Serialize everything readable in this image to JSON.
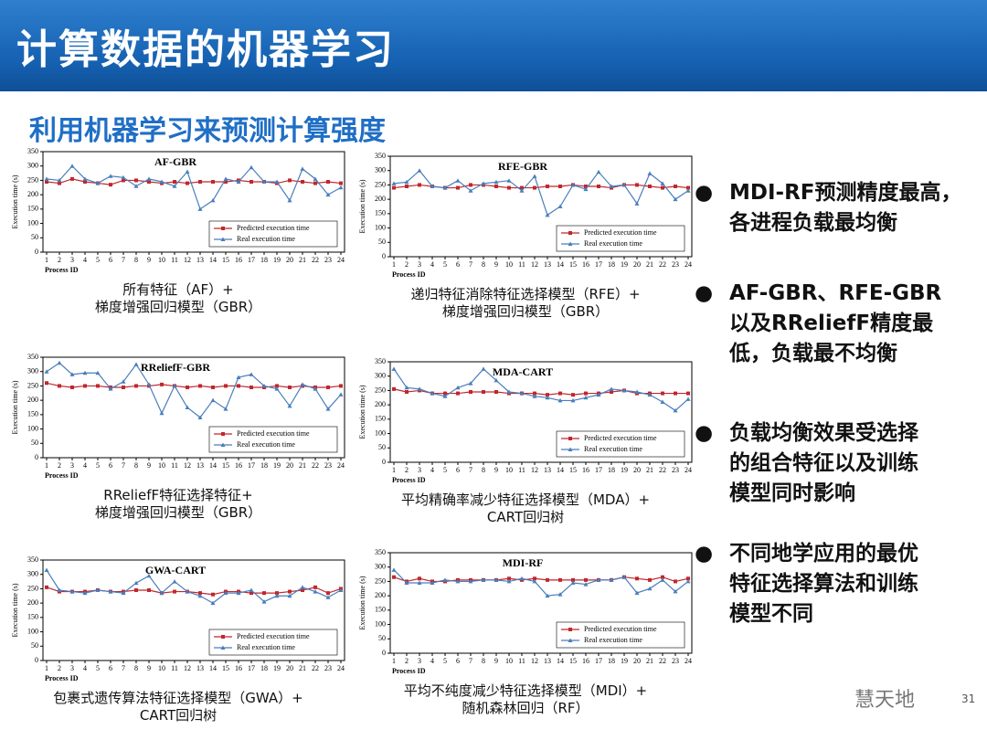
{
  "header": {
    "title": "计算数据的机器学习",
    "subtitle": "利用机器学习来预测计算强度"
  },
  "bullets": [
    [
      "MDI-RF预测精度最高，",
      "各进程负载最均衡"
    ],
    [
      "AF-GBR、RFE-GBR",
      "以及RReliefF精度最",
      "低，负载最不均衡"
    ],
    [
      "负载均衡效果受选择",
      "的组合特征以及训练",
      "模型同时影响"
    ],
    [
      "不同地学应用的最优",
      "特征选择算法和训练",
      "模型不同"
    ]
  ],
  "footer": {
    "watermark": "慧天地",
    "page": "31"
  },
  "chart_data": [
    {
      "type": "line",
      "title": "AF-GBR",
      "caption": [
        "所有特征（AF）+",
        "梯度增强回归模型（GBR）"
      ],
      "xlabel": "Process ID",
      "ylabel": "Execution time (s)",
      "x": [
        1,
        2,
        3,
        4,
        5,
        6,
        7,
        8,
        9,
        10,
        11,
        12,
        13,
        14,
        15,
        16,
        17,
        18,
        19,
        20,
        21,
        22,
        23,
        24
      ],
      "xlim": [
        1,
        24
      ],
      "xticks": [
        1,
        2,
        3,
        4,
        5,
        6,
        7,
        8,
        9,
        10,
        11,
        12,
        13,
        14,
        15,
        16,
        17,
        18,
        19,
        20,
        21,
        22,
        23,
        24
      ],
      "ylim": [
        0,
        350
      ],
      "yticks": [
        0,
        50,
        100,
        150,
        200,
        250,
        300,
        350
      ],
      "legend": "lower right",
      "series": [
        {
          "name": "Predicted execution time",
          "color": "#c0272d",
          "marker": "square",
          "values": [
            245,
            240,
            255,
            245,
            240,
            235,
            250,
            250,
            245,
            240,
            245,
            240,
            245,
            245,
            245,
            250,
            245,
            245,
            240,
            250,
            245,
            240,
            245,
            240
          ]
        },
        {
          "name": "Real execution time",
          "color": "#4a7ebb",
          "marker": "triangle",
          "values": [
            255,
            250,
            300,
            255,
            240,
            265,
            260,
            230,
            255,
            245,
            230,
            280,
            150,
            180,
            255,
            245,
            295,
            245,
            245,
            180,
            290,
            255,
            200,
            225
          ]
        }
      ]
    },
    {
      "type": "line",
      "title": "RFE-GBR",
      "caption": [
        "递归特征消除特征选择模型（RFE）+",
        "梯度增强回归模型（GBR）"
      ],
      "xlabel": "Process ID",
      "ylabel": "Execution time (s)",
      "x": [
        1,
        2,
        3,
        4,
        5,
        6,
        7,
        8,
        9,
        10,
        11,
        12,
        13,
        14,
        15,
        16,
        17,
        18,
        19,
        20,
        21,
        22,
        23,
        24
      ],
      "xlim": [
        1,
        24
      ],
      "xticks": [
        1,
        2,
        3,
        4,
        5,
        6,
        7,
        8,
        9,
        10,
        11,
        12,
        13,
        14,
        15,
        16,
        17,
        18,
        19,
        20,
        21,
        22,
        23,
        24
      ],
      "ylim": [
        0,
        350
      ],
      "yticks": [
        0,
        50,
        100,
        150,
        200,
        250,
        300,
        350
      ],
      "legend": "lower right",
      "series": [
        {
          "name": "Predicted execution time",
          "color": "#c0272d",
          "marker": "square",
          "values": [
            240,
            245,
            250,
            245,
            240,
            240,
            250,
            250,
            245,
            240,
            240,
            240,
            245,
            245,
            250,
            245,
            245,
            240,
            250,
            250,
            245,
            240,
            245,
            240
          ]
        },
        {
          "name": "Real execution time",
          "color": "#4a7ebb",
          "marker": "triangle",
          "values": [
            255,
            260,
            300,
            245,
            240,
            265,
            230,
            255,
            260,
            265,
            230,
            280,
            145,
            175,
            250,
            235,
            295,
            245,
            250,
            185,
            290,
            255,
            200,
            230
          ]
        }
      ]
    },
    {
      "type": "line",
      "title": "RReliefF-GBR",
      "caption": [
        "RReliefF特征选择特征+",
        "梯度增强回归模型（GBR）"
      ],
      "xlabel": "Process ID",
      "ylabel": "Execution time (s)",
      "x": [
        1,
        2,
        3,
        4,
        5,
        6,
        7,
        8,
        9,
        10,
        11,
        12,
        13,
        14,
        15,
        16,
        17,
        18,
        19,
        20,
        21,
        22,
        23,
        24
      ],
      "xlim": [
        1,
        24
      ],
      "xticks": [
        1,
        2,
        3,
        4,
        5,
        6,
        7,
        8,
        9,
        10,
        11,
        12,
        13,
        14,
        15,
        16,
        17,
        18,
        19,
        20,
        21,
        22,
        23,
        24
      ],
      "ylim": [
        0,
        350
      ],
      "yticks": [
        0,
        50,
        100,
        150,
        200,
        250,
        300,
        350
      ],
      "legend": "lower right",
      "series": [
        {
          "name": "Predicted execution time",
          "color": "#c0272d",
          "marker": "square",
          "values": [
            260,
            250,
            245,
            250,
            250,
            245,
            245,
            250,
            250,
            255,
            250,
            245,
            250,
            245,
            250,
            250,
            245,
            245,
            250,
            245,
            250,
            245,
            245,
            250
          ]
        },
        {
          "name": "Real execution time",
          "color": "#4a7ebb",
          "marker": "triangle",
          "values": [
            300,
            330,
            290,
            295,
            295,
            240,
            265,
            325,
            255,
            155,
            250,
            175,
            140,
            200,
            170,
            280,
            290,
            250,
            240,
            180,
            255,
            240,
            170,
            220
          ]
        }
      ]
    },
    {
      "type": "line",
      "title": "MDA-CART",
      "caption": [
        "平均精确率减少特征选择模型（MDA）+",
        "CART回归树"
      ],
      "xlabel": "Process ID",
      "ylabel": "Execution time (s)",
      "x": [
        1,
        2,
        3,
        4,
        5,
        6,
        7,
        8,
        9,
        10,
        11,
        12,
        13,
        14,
        15,
        16,
        17,
        18,
        19,
        20,
        21,
        22,
        23,
        24
      ],
      "xlim": [
        1,
        24
      ],
      "xticks": [
        1,
        2,
        3,
        4,
        5,
        6,
        7,
        8,
        9,
        10,
        11,
        12,
        13,
        14,
        15,
        16,
        17,
        18,
        19,
        20,
        21,
        22,
        23,
        24
      ],
      "ylim": [
        0,
        350
      ],
      "yticks": [
        0,
        50,
        100,
        150,
        200,
        250,
        300,
        350
      ],
      "legend": "lower right",
      "series": [
        {
          "name": "Predicted execution time",
          "color": "#c0272d",
          "marker": "square",
          "values": [
            255,
            245,
            250,
            240,
            240,
            240,
            245,
            245,
            245,
            240,
            240,
            240,
            235,
            240,
            235,
            240,
            240,
            245,
            250,
            240,
            240,
            240,
            240,
            240
          ]
        },
        {
          "name": "Real execution time",
          "color": "#4a7ebb",
          "marker": "triangle",
          "values": [
            325,
            260,
            255,
            240,
            230,
            260,
            275,
            325,
            285,
            245,
            240,
            230,
            225,
            215,
            215,
            225,
            235,
            255,
            250,
            245,
            235,
            210,
            180,
            220
          ]
        }
      ]
    },
    {
      "type": "line",
      "title": "GWA-CART",
      "caption": [
        "包裹式遗传算法特征选择模型（GWA）+",
        "CART回归树"
      ],
      "xlabel": "Process ID",
      "ylabel": "Execution time (s)",
      "x": [
        1,
        2,
        3,
        4,
        5,
        6,
        7,
        8,
        9,
        10,
        11,
        12,
        13,
        14,
        15,
        16,
        17,
        18,
        19,
        20,
        21,
        22,
        23,
        24
      ],
      "xlim": [
        1,
        24
      ],
      "xticks": [
        1,
        2,
        3,
        4,
        5,
        6,
        7,
        8,
        9,
        10,
        11,
        12,
        13,
        14,
        15,
        16,
        17,
        18,
        19,
        20,
        21,
        22,
        23,
        24
      ],
      "ylim": [
        0,
        350
      ],
      "yticks": [
        0,
        50,
        100,
        150,
        200,
        250,
        300,
        350
      ],
      "legend": "lower right",
      "series": [
        {
          "name": "Predicted execution time",
          "color": "#c0272d",
          "marker": "square",
          "values": [
            255,
            240,
            240,
            240,
            245,
            240,
            240,
            245,
            245,
            235,
            240,
            240,
            235,
            230,
            240,
            240,
            235,
            235,
            235,
            240,
            245,
            255,
            235,
            250
          ]
        },
        {
          "name": "Real execution time",
          "color": "#4a7ebb",
          "marker": "triangle",
          "values": [
            315,
            245,
            240,
            235,
            245,
            240,
            235,
            270,
            295,
            235,
            275,
            240,
            225,
            200,
            235,
            235,
            245,
            205,
            225,
            225,
            255,
            240,
            220,
            245
          ]
        }
      ]
    },
    {
      "type": "line",
      "title": "MDI-RF",
      "caption": [
        "平均不纯度减少特征选择模型（MDI）+",
        "随机森林回归（RF）"
      ],
      "xlabel": "Process ID",
      "ylabel": "Execution time (s)",
      "x": [
        1,
        2,
        3,
        4,
        5,
        6,
        7,
        8,
        9,
        10,
        11,
        12,
        13,
        14,
        15,
        16,
        17,
        18,
        19,
        20,
        21,
        22,
        23,
        24
      ],
      "xlim": [
        1,
        24
      ],
      "xticks": [
        1,
        2,
        3,
        4,
        5,
        6,
        7,
        8,
        9,
        10,
        11,
        12,
        13,
        14,
        15,
        16,
        17,
        18,
        19,
        20,
        21,
        22,
        23,
        24
      ],
      "ylim": [
        0,
        350
      ],
      "yticks": [
        0,
        50,
        100,
        150,
        200,
        250,
        300,
        350
      ],
      "legend": "lower right",
      "series": [
        {
          "name": "Predicted execution time",
          "color": "#c0272d",
          "marker": "square",
          "values": [
            265,
            250,
            260,
            250,
            250,
            255,
            255,
            255,
            255,
            260,
            255,
            260,
            255,
            255,
            255,
            255,
            255,
            255,
            265,
            260,
            255,
            265,
            250,
            260
          ]
        },
        {
          "name": "Real execution time",
          "color": "#4a7ebb",
          "marker": "triangle",
          "values": [
            290,
            245,
            245,
            245,
            255,
            250,
            250,
            255,
            255,
            250,
            260,
            250,
            200,
            205,
            245,
            240,
            255,
            255,
            265,
            210,
            225,
            255,
            215,
            250
          ]
        }
      ]
    }
  ]
}
